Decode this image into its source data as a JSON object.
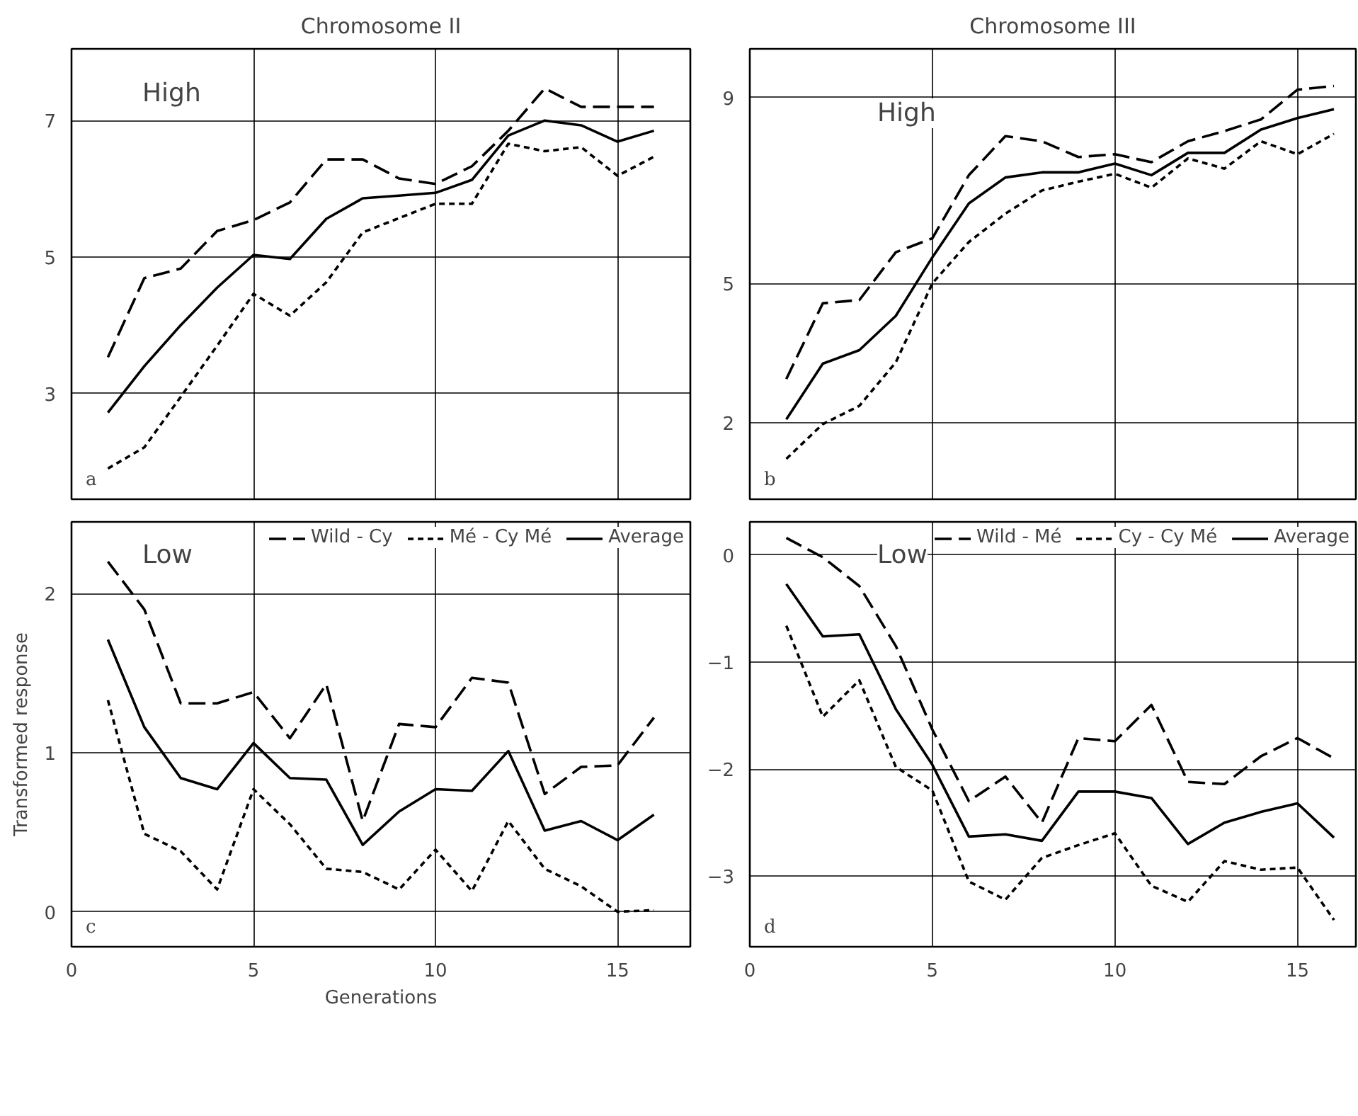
{
  "chart_data": [
    {
      "type": "line",
      "title": "Chromosome II",
      "annotations": [
        "High",
        "a"
      ],
      "x": [
        1,
        2,
        3,
        4,
        5,
        6,
        7,
        8,
        9,
        10,
        11,
        12,
        13,
        14,
        15,
        16
      ],
      "xlim": [
        0,
        17
      ],
      "xticks": [
        0,
        5,
        10,
        15
      ],
      "ylim": [
        1.45,
        8.05
      ],
      "yticks": [
        3,
        5,
        7
      ],
      "grid": true,
      "tick_labels": "y",
      "series": [
        {
          "color": "#000000",
          "line_style": "dashed",
          "values": [
            3.53,
            4.69,
            4.83,
            5.38,
            5.54,
            5.8,
            6.43,
            6.43,
            6.15,
            6.07,
            6.33,
            6.85,
            7.47,
            7.2,
            7.2,
            7.2
          ]
        },
        {
          "color": "#000000",
          "line_style": "dotted",
          "values": [
            1.9,
            2.21,
            2.95,
            3.7,
            4.46,
            4.14,
            4.63,
            5.36,
            5.57,
            5.78,
            5.78,
            6.66,
            6.55,
            6.61,
            6.19,
            6.47
          ]
        },
        {
          "color": "#000000",
          "line_style": "solid",
          "values": [
            2.72,
            3.4,
            4.0,
            4.55,
            5.03,
            4.97,
            5.56,
            5.86,
            5.9,
            5.94,
            6.13,
            6.78,
            7.0,
            6.93,
            6.69,
            6.85
          ]
        }
      ]
    },
    {
      "type": "line",
      "title": "Chromosome III",
      "annotations": [
        "High",
        "b"
      ],
      "x": [
        1,
        2,
        3,
        4,
        5,
        6,
        7,
        8,
        9,
        10,
        11,
        12,
        13,
        14,
        15,
        16
      ],
      "xlim": [
        0,
        16.6
      ],
      "xticks": [
        0,
        5,
        10,
        15
      ],
      "ylim": [
        0.35,
        10.05
      ],
      "yticks": [
        2,
        5,
        9
      ],
      "grid": true,
      "tick_labels": "y",
      "series": [
        {
          "color": "#000000",
          "line_style": "dashed",
          "values": [
            2.94,
            4.57,
            4.64,
            5.67,
            5.97,
            7.33,
            8.17,
            8.06,
            7.72,
            7.78,
            7.61,
            8.06,
            8.28,
            8.53,
            9.17,
            9.25
          ]
        },
        {
          "color": "#000000",
          "line_style": "dotted",
          "values": [
            1.22,
            1.97,
            2.36,
            3.3,
            5.0,
            5.89,
            6.5,
            7.0,
            7.19,
            7.36,
            7.06,
            7.69,
            7.47,
            8.06,
            7.78,
            8.22
          ]
        },
        {
          "color": "#000000",
          "line_style": "solid",
          "values": [
            2.07,
            3.27,
            3.56,
            4.3,
            5.56,
            6.72,
            7.28,
            7.39,
            7.39,
            7.58,
            7.33,
            7.81,
            7.81,
            8.31,
            8.56,
            8.75
          ]
        }
      ]
    },
    {
      "type": "line",
      "ylabel": "Transformed response",
      "xlabel": "Generations",
      "annotations": [
        "Low",
        "c"
      ],
      "x": [
        1,
        2,
        3,
        4,
        5,
        6,
        7,
        8,
        9,
        10,
        11,
        12,
        13,
        14,
        15,
        16
      ],
      "xlim": [
        0,
        17
      ],
      "xticks": [
        0,
        5,
        10,
        15
      ],
      "ylim": [
        -0.22,
        2.45
      ],
      "yticks": [
        0,
        1,
        2
      ],
      "grid": true,
      "legend": "top right",
      "series": [
        {
          "name": "Wild - Cy",
          "color": "#000000",
          "line_style": "dashed",
          "values": [
            2.2,
            1.9,
            1.31,
            1.31,
            1.38,
            1.09,
            1.43,
            0.57,
            1.18,
            1.16,
            1.47,
            1.44,
            0.74,
            0.91,
            0.92,
            1.22
          ]
        },
        {
          "name": "Mé - Cy Mé",
          "color": "#000000",
          "line_style": "dotted",
          "values": [
            1.33,
            0.49,
            0.38,
            0.14,
            0.77,
            0.55,
            0.27,
            0.25,
            0.14,
            0.39,
            0.13,
            0.57,
            0.27,
            0.16,
            0.0,
            0.01
          ]
        },
        {
          "name": "Average",
          "color": "#000000",
          "line_style": "solid",
          "values": [
            1.71,
            1.16,
            0.84,
            0.77,
            1.06,
            0.84,
            0.83,
            0.42,
            0.63,
            0.77,
            0.76,
            1.01,
            0.51,
            0.57,
            0.45,
            0.61
          ]
        }
      ]
    },
    {
      "type": "line",
      "annotations": [
        "Low",
        "d"
      ],
      "x": [
        1,
        2,
        3,
        4,
        5,
        6,
        7,
        8,
        9,
        10,
        11,
        12,
        13,
        14,
        15,
        16
      ],
      "xlim": [
        0,
        16.6
      ],
      "xticks": [
        0,
        5,
        10,
        15
      ],
      "ylim": [
        -3.66,
        0.31
      ],
      "yticks": [
        -3,
        -2,
        -1,
        0
      ],
      "grid": true,
      "legend": "top right",
      "series": [
        {
          "name": "Wild - Mé",
          "color": "#000000",
          "line_style": "dashed",
          "values": [
            0.16,
            -0.02,
            -0.29,
            -0.85,
            -1.63,
            -2.3,
            -2.07,
            -2.5,
            -1.71,
            -1.74,
            -1.4,
            -2.12,
            -2.14,
            -1.88,
            -1.71,
            -1.9
          ]
        },
        {
          "name": "Cy - Cy Mé",
          "color": "#000000",
          "line_style": "dotted",
          "values": [
            -0.66,
            -1.51,
            -1.17,
            -1.98,
            -2.2,
            -3.05,
            -3.22,
            -2.83,
            -2.71,
            -2.6,
            -3.09,
            -3.24,
            -2.86,
            -2.94,
            -2.92,
            -3.41
          ]
        },
        {
          "name": "Average",
          "color": "#000000",
          "line_style": "solid",
          "values": [
            -0.27,
            -0.76,
            -0.74,
            -1.44,
            -1.96,
            -2.63,
            -2.61,
            -2.67,
            -2.21,
            -2.21,
            -2.27,
            -2.7,
            -2.5,
            -2.4,
            -2.32,
            -2.64
          ]
        }
      ]
    }
  ]
}
